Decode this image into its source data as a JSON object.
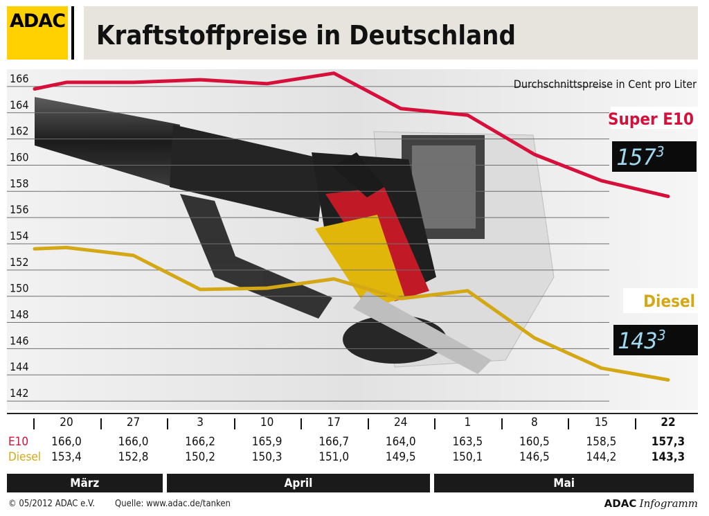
{
  "header": {
    "logo_text": "ADAC",
    "title": "Kraftstoffpreise in Deutschland"
  },
  "colors": {
    "e10": "#d6103a",
    "diesel": "#d4a814",
    "logo_yellow": "#ffd100",
    "lcd_bg": "#0b0b0b",
    "lcd_digit": "#9fd8f0"
  },
  "chart_data": {
    "type": "line",
    "title": "Kraftstoffpreise in Deutschland",
    "subtitle": "Durchschnittspreise in Cent pro Liter",
    "categories": [
      "20",
      "27",
      "3",
      "10",
      "17",
      "24",
      "1",
      "8",
      "15",
      "22"
    ],
    "months": [
      {
        "label": "März",
        "span": [
          0,
          1
        ]
      },
      {
        "label": "April",
        "span": [
          2,
          5
        ]
      },
      {
        "label": "Mai",
        "span": [
          6,
          9
        ]
      }
    ],
    "series": [
      {
        "name": "Super E10",
        "short": "E10",
        "values": [
          166.0,
          166.0,
          166.2,
          165.9,
          166.7,
          164.0,
          163.5,
          160.5,
          158.5,
          157.3
        ],
        "labels": [
          "166,0",
          "166,0",
          "166,2",
          "165,9",
          "166,7",
          "164,0",
          "163,5",
          "160,5",
          "158,5",
          "157,3"
        ],
        "current_display": "1573",
        "color": "#d6103a"
      },
      {
        "name": "Diesel",
        "short": "Diesel",
        "values": [
          153.4,
          152.8,
          150.2,
          150.3,
          151.0,
          149.5,
          150.1,
          146.5,
          144.2,
          143.3
        ],
        "labels": [
          "153,4",
          "152,8",
          "150,2",
          "150,3",
          "151,0",
          "149,5",
          "150,1",
          "146,5",
          "144,2",
          "143,3"
        ],
        "current_display": "1433",
        "color": "#d4a814"
      }
    ],
    "ylim": [
      141,
      167
    ],
    "yticks": [
      142,
      144,
      146,
      148,
      150,
      152,
      154,
      156,
      158,
      160,
      162,
      164,
      166
    ],
    "ytick_labels": [
      "142",
      "144",
      "146",
      "148",
      "150",
      "152",
      "154",
      "156",
      "158",
      "160",
      "162",
      "164",
      "166"
    ],
    "grid": true
  },
  "footer": {
    "copyright": "© 05/2012 ADAC e.V.",
    "source": "Quelle: www.adac.de/tanken",
    "brand_bold": "ADAC",
    "brand_italic": "Infogramm"
  }
}
